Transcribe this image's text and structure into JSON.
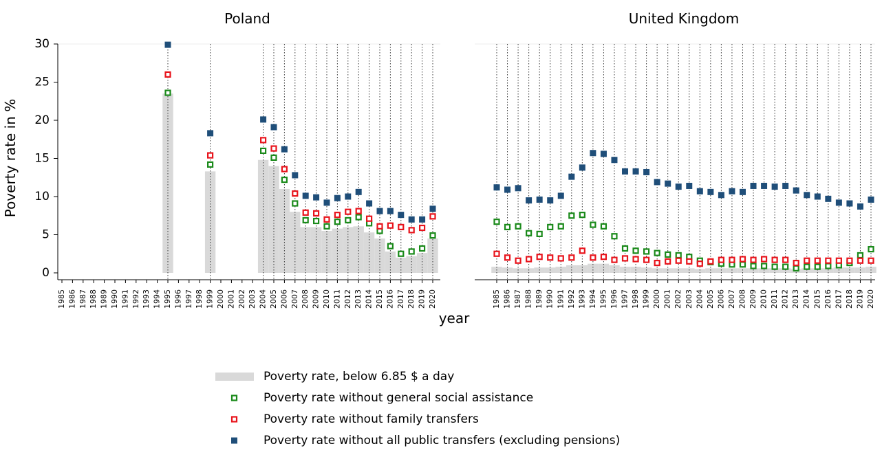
{
  "chart_data": [
    {
      "type": "bar",
      "title": "Poland",
      "ylabel": "Poverty rate in %",
      "xlabel": "year",
      "categories": [
        "1985",
        "1986",
        "1987",
        "1988",
        "1989",
        "1990",
        "1991",
        "1992",
        "1993",
        "1994",
        "1995",
        "1996",
        "1997",
        "1998",
        "1999",
        "2000",
        "2001",
        "2002",
        "2003",
        "2004",
        "2005",
        "2006",
        "2007",
        "2008",
        "2009",
        "2010",
        "2011",
        "2012",
        "2013",
        "2014",
        "2015",
        "2016",
        "2017",
        "2018",
        "2019",
        "2020"
      ],
      "ylim": [
        0,
        30
      ],
      "yticks": [
        0,
        5,
        10,
        15,
        20,
        25,
        30
      ],
      "series": [
        {
          "name": "Poverty rate, below 6.85 $ a day",
          "color": "#d9d9d9",
          "style": "bar",
          "values": [
            null,
            null,
            null,
            null,
            null,
            null,
            null,
            null,
            null,
            null,
            23.5,
            null,
            null,
            null,
            13.3,
            null,
            null,
            null,
            null,
            14.8,
            14.0,
            11.0,
            8.0,
            6.0,
            6.0,
            5.5,
            5.8,
            6.0,
            6.1,
            5.3,
            4.5,
            2.8,
            2.0,
            2.2,
            2.6,
            4.5
          ]
        },
        {
          "name": "Poverty rate without general social assistance",
          "color": "#1a8a1a",
          "style": "hollow-square",
          "values": [
            null,
            null,
            null,
            null,
            null,
            null,
            null,
            null,
            null,
            null,
            23.6,
            null,
            null,
            null,
            14.2,
            null,
            null,
            null,
            null,
            16.0,
            15.1,
            12.2,
            9.1,
            6.9,
            6.8,
            6.1,
            6.7,
            6.9,
            7.3,
            6.5,
            5.5,
            3.5,
            2.5,
            2.8,
            3.2,
            4.9
          ]
        },
        {
          "name": "Poverty rate without family transfers",
          "color": "#e8141c",
          "style": "hollow-square",
          "values": [
            null,
            null,
            null,
            null,
            null,
            null,
            null,
            null,
            null,
            null,
            26.0,
            null,
            null,
            null,
            15.4,
            null,
            null,
            null,
            null,
            17.4,
            16.3,
            13.6,
            10.4,
            7.9,
            7.8,
            7.0,
            7.6,
            8.0,
            8.1,
            7.1,
            6.1,
            6.2,
            6.0,
            5.6,
            5.9,
            7.4
          ]
        },
        {
          "name": "Poverty rate without all public transfers (excluding pensions)",
          "color": "#1f4e79",
          "style": "square",
          "values": [
            null,
            null,
            null,
            null,
            null,
            null,
            null,
            null,
            null,
            null,
            29.9,
            null,
            null,
            null,
            18.3,
            null,
            null,
            null,
            null,
            20.1,
            19.1,
            16.2,
            12.8,
            10.1,
            9.9,
            9.2,
            9.8,
            10.0,
            10.6,
            9.1,
            8.1,
            8.1,
            7.6,
            7.0,
            7.0,
            8.4
          ]
        }
      ]
    },
    {
      "type": "bar",
      "title": "United Kingdom",
      "categories": [
        "1985",
        "1986",
        "1987",
        "1988",
        "1989",
        "1990",
        "1991",
        "1992",
        "1993",
        "1994",
        "1995",
        "1996",
        "1997",
        "1998",
        "1999",
        "2000",
        "2001",
        "2002",
        "2003",
        "2004",
        "2005",
        "2006",
        "2007",
        "2008",
        "2009",
        "2010",
        "2011",
        "2012",
        "2013",
        "2014",
        "2015",
        "2016",
        "2017",
        "2018",
        "2019",
        "2020"
      ],
      "ylim": [
        0,
        30
      ],
      "series": [
        {
          "name": "Poverty rate, below 6.85 $ a day",
          "color": "#d9d9d9",
          "style": "bar",
          "values": [
            0.8,
            0.7,
            0.6,
            0.6,
            0.7,
            0.7,
            0.8,
            1.0,
            1.0,
            1.2,
            1.2,
            1.0,
            0.8,
            0.8,
            0.7,
            0.6,
            0.6,
            0.6,
            0.6,
            0.5,
            0.6,
            0.6,
            0.6,
            0.6,
            0.6,
            0.6,
            0.6,
            0.6,
            0.5,
            0.6,
            0.6,
            0.6,
            0.7,
            0.7,
            0.7,
            0.8
          ]
        },
        {
          "name": "Poverty rate without general social assistance",
          "color": "#1a8a1a",
          "style": "hollow-square",
          "values": [
            6.7,
            6.0,
            6.1,
            5.2,
            5.1,
            6.0,
            6.1,
            7.5,
            7.6,
            6.3,
            6.1,
            4.8,
            3.2,
            2.9,
            2.8,
            2.6,
            2.4,
            2.3,
            2.1,
            1.6,
            1.4,
            1.2,
            1.1,
            1.1,
            0.9,
            0.9,
            0.8,
            0.8,
            0.6,
            0.8,
            0.8,
            0.9,
            1.0,
            1.3,
            2.3,
            3.1
          ]
        },
        {
          "name": "Poverty rate without family transfers",
          "color": "#e8141c",
          "style": "hollow-square",
          "values": [
            2.5,
            2.0,
            1.6,
            1.8,
            2.1,
            2.0,
            1.9,
            2.0,
            2.9,
            2.0,
            2.1,
            1.7,
            1.9,
            1.8,
            1.7,
            1.3,
            1.5,
            1.6,
            1.5,
            1.2,
            1.5,
            1.7,
            1.7,
            1.8,
            1.7,
            1.8,
            1.7,
            1.7,
            1.3,
            1.6,
            1.6,
            1.6,
            1.6,
            1.6,
            1.6,
            1.6
          ]
        },
        {
          "name": "Poverty rate without all public transfers (excluding pensions)",
          "color": "#1f4e79",
          "style": "square",
          "values": [
            11.2,
            10.9,
            11.1,
            9.5,
            9.6,
            9.5,
            10.1,
            12.6,
            13.8,
            15.7,
            15.6,
            14.8,
            13.3,
            13.3,
            13.2,
            11.9,
            11.7,
            11.3,
            11.4,
            10.7,
            10.6,
            10.2,
            10.7,
            10.6,
            11.4,
            11.4,
            11.3,
            11.4,
            10.8,
            10.2,
            10.0,
            9.7,
            9.2,
            9.1,
            8.7,
            9.6
          ]
        }
      ]
    }
  ]
}
